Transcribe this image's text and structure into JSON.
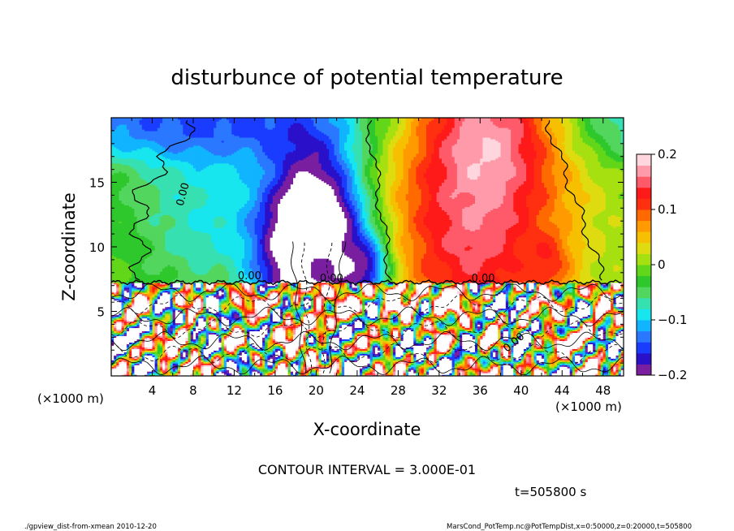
{
  "chart_data": {
    "type": "heatmap",
    "title": "disturbunce of potential temperature",
    "xlabel": "X-coordinate",
    "ylabel": "Z-coordinate",
    "x_unit_label": "(×1000 m)",
    "y_unit_label": "(×1000 m)",
    "xlim": [
      0,
      50
    ],
    "ylim": [
      0,
      20
    ],
    "x_ticks": [
      "4",
      "8",
      "12",
      "16",
      "20",
      "24",
      "28",
      "32",
      "36",
      "40",
      "44",
      "48"
    ],
    "y_ticks": [
      "5",
      "10",
      "15"
    ],
    "colorbar": {
      "min": -0.2,
      "max": 0.2,
      "tick_labels": [
        "0.2",
        "0.1",
        "0",
        "−0.1",
        "−0.2"
      ],
      "colors": [
        "#7a1fa0",
        "#2a10c8",
        "#1a3cff",
        "#2a78ff",
        "#10b4ff",
        "#18e6ee",
        "#37e0b0",
        "#52d65e",
        "#2ec82c",
        "#62d618",
        "#a6e010",
        "#dedc10",
        "#f6c000",
        "#ff9a00",
        "#ff6a00",
        "#ff3010",
        "#ff1a1a",
        "#ff5a6a",
        "#ff9aaa",
        "#ffd6de"
      ]
    },
    "contour_labels": [
      "0.00",
      "0.00",
      "0.00",
      "0.00",
      "0.00"
    ],
    "contour_interval": "CONTOUR INTERVAL = 3.000E-01",
    "time_label": "t=505800 s",
    "grid": false
  },
  "footer": {
    "left": "./gpview_dist-from-xmean  2010-12-20",
    "right": "MarsCond_PotTemp.nc@PotTempDist,x=0:50000,z=0:20000,t=505800"
  }
}
